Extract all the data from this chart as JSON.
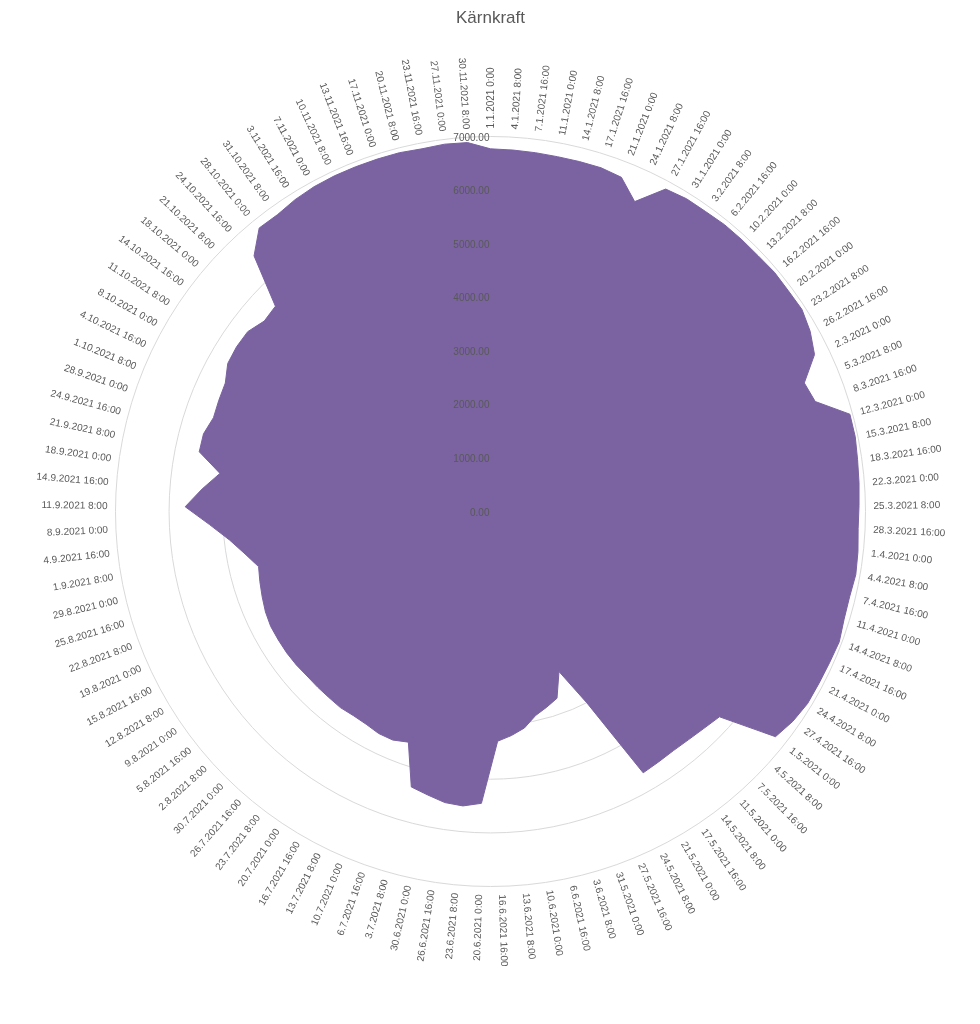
{
  "chart_data": {
    "type": "radar",
    "title": "Kärnkraft",
    "categories": [
      "1.1.2021 0:00",
      "4.1.2021 8:00",
      "7.1.2021 16:00",
      "11.1.2021 0:00",
      "14.1.2021 8:00",
      "17.1.2021 16:00",
      "21.1.2021 0:00",
      "24.1.2021 8:00",
      "27.1.2021 16:00",
      "31.1.2021 0:00",
      "3.2.2021 8:00",
      "6.2.2021 16:00",
      "10.2.2021 0:00",
      "13.2.2021 8:00",
      "16.2.2021 16:00",
      "20.2.2021 0:00",
      "23.2.2021 8:00",
      "26.2.2021 16:00",
      "2.3.2021 0:00",
      "5.3.2021 8:00",
      "8.3.2021 16:00",
      "12.3.2021 0:00",
      "15.3.2021 8:00",
      "18.3.2021 16:00",
      "22.3.2021 0:00",
      "25.3.2021 8:00",
      "28.3.2021 16:00",
      "1.4.2021 0:00",
      "4.4.2021 8:00",
      "7.4.2021 16:00",
      "11.4.2021 0:00",
      "14.4.2021 8:00",
      "17.4.2021 16:00",
      "21.4.2021 0:00",
      "24.4.2021 8:00",
      "27.4.2021 16:00",
      "1.5.2021 0:00",
      "4.5.2021 8:00",
      "7.5.2021 16:00",
      "11.5.2021 0:00",
      "14.5.2021 8:00",
      "17.5.2021 16:00",
      "21.5.2021 0:00",
      "24.5.2021 8:00",
      "27.5.2021 16:00",
      "31.5.2021 0:00",
      "3.6.2021 8:00",
      "6.6.2021 16:00",
      "10.6.2021 0:00",
      "13.6.2021 8:00",
      "16.6.2021 16:00",
      "20.6.2021 0:00",
      "23.6.2021 8:00",
      "26.6.2021 16:00",
      "30.6.2021 0:00",
      "3.7.2021 8:00",
      "6.7.2021 16:00",
      "10.7.2021 0:00",
      "13.7.2021 8:00",
      "16.7.2021 16:00",
      "20.7.2021 0:00",
      "23.7.2021 8:00",
      "26.7.2021 16:00",
      "30.7.2021 0:00",
      "2.8.2021 8:00",
      "5.8.2021 16:00",
      "9.8.2021 0:00",
      "12.8.2021 8:00",
      "15.8.2021 16:00",
      "19.8.2021 0:00",
      "22.8.2021 8:00",
      "25.8.2021 16:00",
      "29.8.2021 0:00",
      "1.9.2021 8:00",
      "4.9.2021 16:00",
      "8.9.2021 0:00",
      "11.9.2021 8:00",
      "14.9.2021 16:00",
      "18.9.2021 0:00",
      "21.9.2021 8:00",
      "24.9.2021 16:00",
      "28.9.2021 0:00",
      "1.10.2021 8:00",
      "4.10.2021 16:00",
      "8.10.2021 0:00",
      "11.10.2021 8:00",
      "14.10.2021 16:00",
      "18.10.2021 0:00",
      "21.10.2021 8:00",
      "24.10.2021 16:00",
      "28.10.2021 0:00",
      "31.10.2021 8:00",
      "3.11.2021 16:00",
      "7.11.2021 0:00",
      "10.11.2021 8:00",
      "13.11.2021 16:00",
      "17.11.2021 0:00",
      "20.11.2021 8:00",
      "23.11.2021 16:00",
      "27.11.2021 0:00",
      "30.11.2021 8:00"
    ],
    "series": [
      {
        "color": "#7a63a0",
        "values": [
          6770,
          6760,
          6750,
          6740,
          6740,
          6740,
          6700,
          6380,
          6850,
          6890,
          6890,
          6910,
          6910,
          6910,
          6930,
          6920,
          6930,
          6850,
          6720,
          6330,
          6400,
          6950,
          6950,
          6920,
          6900,
          6880,
          6870,
          6900,
          6920,
          6890,
          6900,
          6950,
          6930,
          6920,
          6920,
          6870,
          6780,
          5740,
          5680,
          5640,
          5620,
          5630,
          5650,
          4000,
          3250,
          3700,
          3800,
          3900,
          4090,
          4200,
          4290,
          5450,
          5520,
          5500,
          5420,
          5350,
          4570,
          4640,
          4640,
          4600,
          4590,
          4610,
          4600,
          4600,
          4600,
          4620,
          4630,
          4630,
          4630,
          4600,
          4550,
          4500,
          4450,
          4650,
          4900,
          5250,
          5700,
          5400,
          5100,
          5550,
          5550,
          5460,
          5480,
          5500,
          5630,
          5650,
          5640,
          5520,
          5550,
          6500,
          6830,
          6820,
          6870,
          6900,
          6910,
          6910,
          6910,
          6910,
          6890,
          6910,
          6900
        ]
      }
    ],
    "ylim": [
      0,
      7000
    ],
    "yticks": [
      {
        "value": 0,
        "label": "0.00"
      },
      {
        "value": 1000,
        "label": "1000.00"
      },
      {
        "value": 2000,
        "label": "2000.00"
      },
      {
        "value": 3000,
        "label": "3000.00"
      },
      {
        "value": 4000,
        "label": "4000.00"
      },
      {
        "value": 5000,
        "label": "5000.00"
      },
      {
        "value": 6000,
        "label": "6000.00"
      },
      {
        "value": 7000,
        "label": "7000.00"
      }
    ],
    "grid": true
  }
}
